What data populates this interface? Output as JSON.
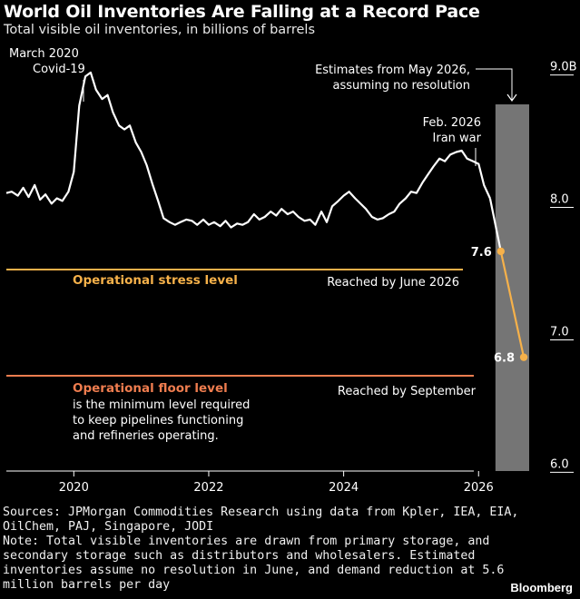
{
  "chart_data": {
    "type": "line",
    "title": "World Oil Inventories Are Falling at a Record Pace",
    "subtitle": "Total visible oil inventories, in billions of barrels",
    "x_axis": {
      "ticks": [
        "2020",
        "2022",
        "2024",
        "2026"
      ],
      "range": [
        2019.0,
        2026.75
      ]
    },
    "y_axis": {
      "ticks": [
        "9.0B",
        "8.0",
        "7.0",
        "6.0"
      ],
      "range": [
        5.9,
        9.1
      ]
    },
    "grid": false,
    "series": [
      {
        "name": "",
        "x": [
          2019.0,
          2019.08,
          2019.17,
          2019.25,
          2019.33,
          2019.42,
          2019.5,
          2019.58,
          2019.67,
          2019.75,
          2019.83,
          2019.92,
          2020.0,
          2020.08,
          2020.17,
          2020.25,
          2020.33,
          2020.42,
          2020.5,
          2020.58,
          2020.67,
          2020.75,
          2020.83,
          2020.92,
          2021.0,
          2021.08,
          2021.17,
          2021.25,
          2021.33,
          2021.42,
          2021.5,
          2021.58,
          2021.67,
          2021.75,
          2021.83,
          2021.92,
          2022.0,
          2022.08,
          2022.17,
          2022.25,
          2022.33,
          2022.42,
          2022.5,
          2022.58,
          2022.67,
          2022.75,
          2022.83,
          2022.92,
          2023.0,
          2023.08,
          2023.17,
          2023.25,
          2023.33,
          2023.42,
          2023.5,
          2023.58,
          2023.67,
          2023.75,
          2023.83,
          2023.92,
          2024.0,
          2024.08,
          2024.17,
          2024.25,
          2024.33,
          2024.42,
          2024.5,
          2024.58,
          2024.67,
          2024.75,
          2024.83,
          2024.92,
          2025.0,
          2025.08,
          2025.17,
          2025.25,
          2025.33,
          2025.42,
          2025.5,
          2025.58,
          2025.67,
          2025.75,
          2025.83,
          2025.92,
          2026.0,
          2026.08,
          2026.17
        ],
        "y": [
          8.04,
          8.05,
          8.02,
          8.08,
          8.01,
          8.1,
          7.99,
          8.03,
          7.96,
          8.0,
          7.98,
          8.05,
          8.2,
          8.7,
          8.92,
          8.95,
          8.82,
          8.75,
          8.78,
          8.65,
          8.55,
          8.52,
          8.55,
          8.42,
          8.35,
          8.25,
          8.1,
          7.98,
          7.85,
          7.82,
          7.8,
          7.82,
          7.84,
          7.83,
          7.8,
          7.84,
          7.8,
          7.82,
          7.79,
          7.83,
          7.78,
          7.81,
          7.8,
          7.82,
          7.88,
          7.84,
          7.86,
          7.9,
          7.87,
          7.92,
          7.88,
          7.9,
          7.86,
          7.83,
          7.84,
          7.8,
          7.9,
          7.82,
          7.94,
          7.98,
          8.02,
          8.05,
          8.0,
          7.96,
          7.92,
          7.86,
          7.84,
          7.85,
          7.88,
          7.9,
          7.96,
          8.0,
          8.05,
          8.04,
          8.12,
          8.18,
          8.24,
          8.3,
          8.28,
          8.33,
          8.35,
          8.36,
          8.3,
          8.28,
          8.26,
          8.1,
          8.0
        ]
      },
      {
        "name": "",
        "x": [
          2026.17,
          2026.33,
          2026.67
        ],
        "y": [
          8.0,
          7.6,
          6.8
        ]
      }
    ],
    "reference_lines": [
      {
        "value": 7.6,
        "label": "Operational stress level",
        "color": "#f6b14a"
      },
      {
        "value": 6.8,
        "label": "Operational floor level",
        "color": "#ef7d4f"
      }
    ],
    "point_labels": [
      {
        "x": 2026.33,
        "y": 7.6,
        "label": "7.6"
      },
      {
        "x": 2026.67,
        "y": 6.8,
        "label": "6.8"
      }
    ],
    "estimate_band": {
      "x_start": 2026.25,
      "x_end": 2026.75,
      "color": "#8a8a8a"
    },
    "annotations": {
      "covid": [
        "March 2020",
        "Covid-19"
      ],
      "estimates": [
        "Estimates from May 2026,",
        "assuming no resolution"
      ],
      "iran": [
        "Feb. 2026",
        "Iran war"
      ],
      "stress_reached": "Reached by June 2026",
      "floor_reached": "Reached by September",
      "floor_desc": [
        "is the minimum level required",
        "to keep pipelines functioning",
        "and refineries operating."
      ]
    }
  },
  "footer": {
    "lines": [
      "Sources: JPMorgan Commodities Research using data from Kpler, IEA, EIA,",
      "OilChem, PAJ, Singapore, JODI",
      "Note: Total visible inventories are drawn from primary storage, and",
      "secondary storage such as distributors and wholesalers. Estimated",
      "inventories assume no resolution in June, and demand reduction at 5.6",
      "million barrels per day"
    ],
    "brand": "Bloomberg"
  },
  "colors": {
    "background": "#000000",
    "line": "#ffffff",
    "estimate": "#f6b14a"
  }
}
